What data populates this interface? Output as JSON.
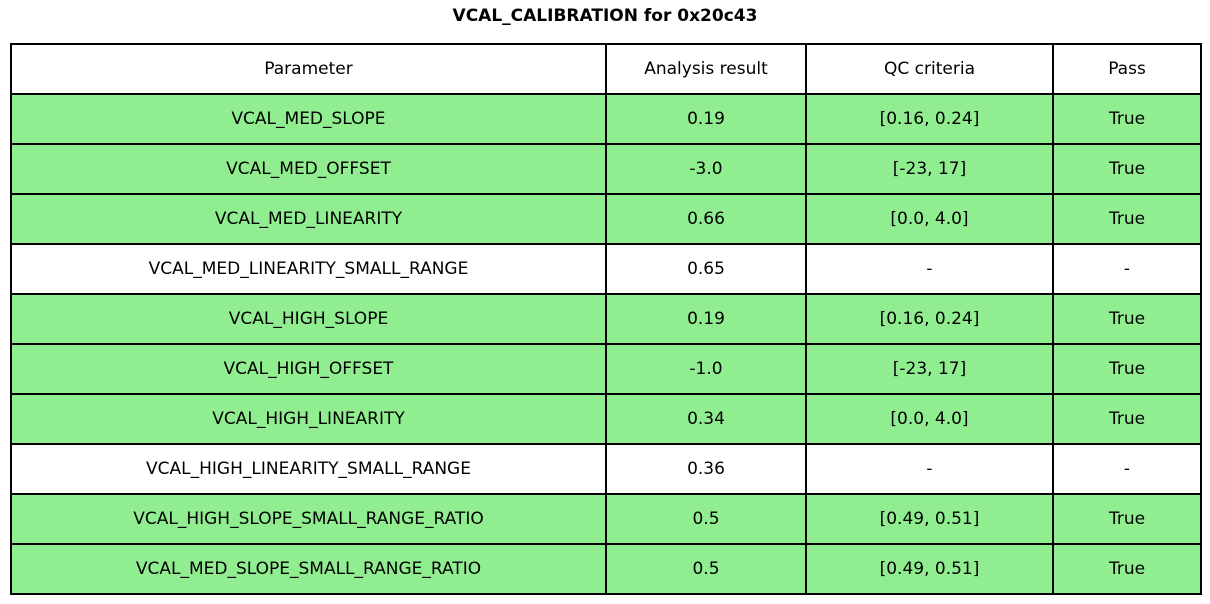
{
  "title": "VCAL_CALIBRATION for 0x20c43",
  "colors": {
    "pass_green": "#90ee90",
    "fail_white": "#ffffff",
    "border": "#000000"
  },
  "chart_data": {
    "type": "table",
    "title": "VCAL_CALIBRATION for 0x20c43",
    "columns": [
      "Parameter",
      "Analysis result",
      "QC criteria",
      "Pass"
    ],
    "rows": [
      {
        "parameter": "VCAL_MED_SLOPE",
        "result": "0.19",
        "criteria": "[0.16, 0.24]",
        "pass": "True",
        "highlighted": true
      },
      {
        "parameter": "VCAL_MED_OFFSET",
        "result": "-3.0",
        "criteria": "[-23, 17]",
        "pass": "True",
        "highlighted": true
      },
      {
        "parameter": "VCAL_MED_LINEARITY",
        "result": "0.66",
        "criteria": "[0.0, 4.0]",
        "pass": "True",
        "highlighted": true
      },
      {
        "parameter": "VCAL_MED_LINEARITY_SMALL_RANGE",
        "result": "0.65",
        "criteria": "-",
        "pass": "-",
        "highlighted": false
      },
      {
        "parameter": "VCAL_HIGH_SLOPE",
        "result": "0.19",
        "criteria": "[0.16, 0.24]",
        "pass": "True",
        "highlighted": true
      },
      {
        "parameter": "VCAL_HIGH_OFFSET",
        "result": "-1.0",
        "criteria": "[-23, 17]",
        "pass": "True",
        "highlighted": true
      },
      {
        "parameter": "VCAL_HIGH_LINEARITY",
        "result": "0.34",
        "criteria": "[0.0, 4.0]",
        "pass": "True",
        "highlighted": true
      },
      {
        "parameter": "VCAL_HIGH_LINEARITY_SMALL_RANGE",
        "result": "0.36",
        "criteria": "-",
        "pass": "-",
        "highlighted": false
      },
      {
        "parameter": "VCAL_HIGH_SLOPE_SMALL_RANGE_RATIO",
        "result": "0.5",
        "criteria": "[0.49, 0.51]",
        "pass": "True",
        "highlighted": true
      },
      {
        "parameter": "VCAL_MED_SLOPE_SMALL_RANGE_RATIO",
        "result": "0.5",
        "criteria": "[0.49, 0.51]",
        "pass": "True",
        "highlighted": true
      }
    ]
  }
}
